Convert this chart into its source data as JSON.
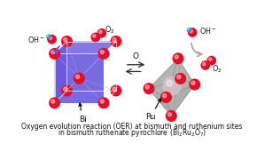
{
  "bg_color": "#ffffff",
  "cube_color": "#6655dd",
  "cube_alpha": 0.88,
  "oct_color": "#aaaaaa",
  "oct_alpha": 0.75,
  "red_color": "#e0102a",
  "blue_color": "#3388cc",
  "ru_color": "#d8bfc8",
  "arrow_purple": "#7755cc",
  "arrow_gray": "#aaaaaa",
  "arrow_black": "#333333",
  "text_color": "#111111",
  "line_color_cube": "#aaaaee",
  "caption1": "Oxygen evolution reaction (OER) at bismuth and ruthenium sites",
  "caption2": "in bismuth ruthenate pyrochlore (Bi$_2$Ru$_2$O$_7$)"
}
